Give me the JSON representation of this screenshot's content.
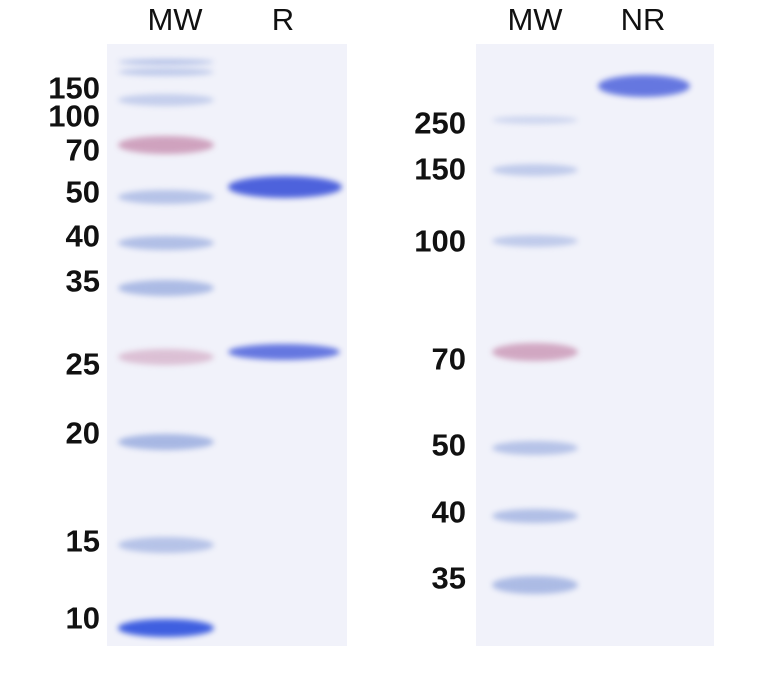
{
  "left_panel": {
    "lane_headers": [
      "MW",
      "R"
    ],
    "mw_labels": [
      "150",
      "100",
      "70",
      "50",
      "40",
      "35",
      "25",
      "20",
      "15",
      "10"
    ]
  },
  "right_panel": {
    "lane_headers": [
      "MW",
      "NR"
    ],
    "mw_labels": [
      "250",
      "150",
      "100",
      "70",
      "50",
      "40",
      "35"
    ]
  },
  "colors": {
    "gel_background": "#f1f2fa",
    "ladder_band": "#8fa4dc",
    "ladder_marker_pink": "#c78fb0",
    "sample_band": "#4d62dc"
  }
}
